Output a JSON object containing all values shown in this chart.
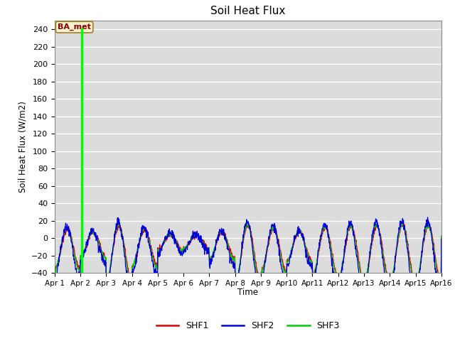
{
  "title": "Soil Heat Flux",
  "ylabel": "Soil Heat Flux (W/m2)",
  "xlabel": "Time",
  "ylim": [
    -40,
    250
  ],
  "yticks": [
    -40,
    -20,
    0,
    20,
    40,
    60,
    80,
    100,
    120,
    140,
    160,
    180,
    200,
    220,
    240
  ],
  "background_color": "#dcdcdc",
  "annotation_text": "BA_met",
  "vertical_line_x": 1.05,
  "shf1_color": "#dd0000",
  "shf2_color": "#0000dd",
  "shf3_color": "#00cc00",
  "legend_labels": [
    "SHF1",
    "SHF2",
    "SHF3"
  ],
  "figsize": [
    6.4,
    4.8
  ],
  "dpi": 100
}
